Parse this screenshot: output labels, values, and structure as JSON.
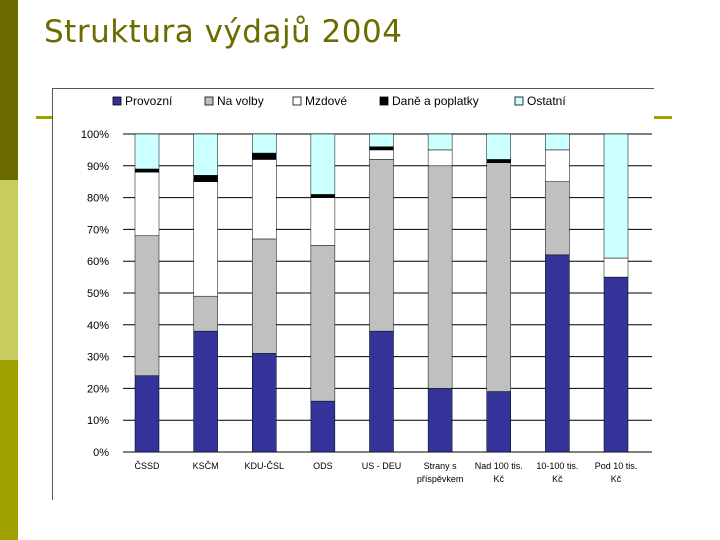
{
  "slide": {
    "title": "Struktura výdajů 2004"
  },
  "colors": {
    "sidebar_dark": "#6b6b00",
    "sidebar_light": "#c8cc5c",
    "title": "#6b6b00",
    "rule": "#9ea000"
  },
  "chart_data": {
    "type": "bar",
    "stacked": true,
    "percent": true,
    "categories": [
      [
        "ČSSD"
      ],
      [
        "KSČM"
      ],
      [
        "KDU-ČSL"
      ],
      [
        "ODS"
      ],
      [
        "US - DEU"
      ],
      [
        "Strany s",
        "příspěvkem"
      ],
      [
        "Nad 100 tis.",
        "Kč"
      ],
      [
        "10-100 tis.",
        "Kč"
      ],
      [
        "Pod 10 tis.",
        "Kč"
      ]
    ],
    "series": [
      {
        "name": "Provozní",
        "color": "#333399",
        "values": [
          24,
          38,
          31,
          16,
          38,
          20,
          19,
          62,
          55
        ]
      },
      {
        "name": "Na volby",
        "color": "#c0c0c0",
        "values": [
          44,
          11,
          36,
          49,
          54,
          70,
          72,
          23,
          0
        ]
      },
      {
        "name": "Mzdové",
        "color": "#ffffff",
        "values": [
          20,
          36,
          25,
          15,
          3,
          5,
          0,
          10,
          6
        ]
      },
      {
        "name": "Daně a poplatky",
        "color": "#000000",
        "values": [
          1,
          2,
          2,
          1,
          1,
          0,
          1,
          0,
          0
        ]
      },
      {
        "name": "Ostatní",
        "color": "#ccffff",
        "values": [
          11,
          13,
          6,
          19,
          4,
          5,
          8,
          5,
          39
        ]
      }
    ],
    "yticks": [
      "0%",
      "10%",
      "20%",
      "30%",
      "40%",
      "50%",
      "60%",
      "70%",
      "80%",
      "90%",
      "100%"
    ],
    "ylim": [
      0,
      100
    ],
    "grid": true,
    "legend": "top"
  }
}
